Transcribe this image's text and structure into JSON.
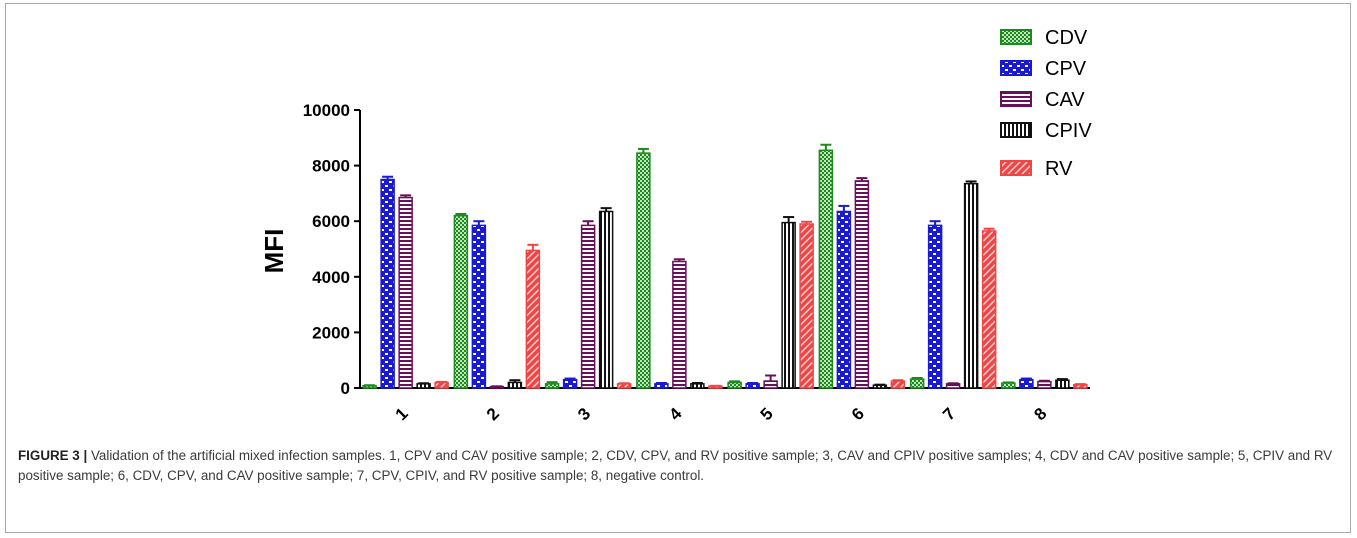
{
  "chart_data": {
    "type": "bar",
    "ylabel": "MFI",
    "xlabel": "",
    "ylim": [
      0,
      10000
    ],
    "yticks": [
      "0",
      "2000",
      "4000",
      "6000",
      "8000",
      "10000"
    ],
    "categories": [
      "1",
      "2",
      "3",
      "4",
      "5",
      "6",
      "7",
      "8"
    ],
    "legend_position": "top-right",
    "series": [
      {
        "name": "CDV",
        "color": "#1e8a1e",
        "pattern": "checker",
        "values": [
          80,
          6200,
          150,
          8450,
          200,
          8550,
          320,
          180
        ],
        "errors": [
          20,
          60,
          60,
          150,
          40,
          200,
          40,
          20
        ]
      },
      {
        "name": "CPV",
        "color": "#1a1ad0",
        "pattern": "blocks",
        "values": [
          7500,
          5850,
          300,
          150,
          150,
          6350,
          5850,
          300
        ],
        "errors": [
          100,
          150,
          40,
          30,
          30,
          200,
          150,
          40
        ]
      },
      {
        "name": "CAV",
        "color": "#6a0f5c",
        "pattern": "hstripes",
        "values": [
          6850,
          50,
          5850,
          4550,
          250,
          7450,
          150,
          230
        ],
        "errors": [
          80,
          10,
          150,
          80,
          200,
          100,
          20,
          30
        ]
      },
      {
        "name": "CPIV",
        "color": "#111111",
        "pattern": "vstripes",
        "values": [
          150,
          200,
          6350,
          150,
          5950,
          100,
          7350,
          280
        ],
        "errors": [
          20,
          80,
          120,
          30,
          200,
          20,
          80,
          40
        ]
      },
      {
        "name": "RV",
        "color": "#f04545",
        "pattern": "diagonal",
        "values": [
          200,
          4950,
          150,
          70,
          5900,
          250,
          5650,
          120
        ],
        "errors": [
          20,
          200,
          20,
          10,
          80,
          30,
          80,
          20
        ]
      }
    ]
  },
  "caption": {
    "label": "FIGURE 3 |",
    "text": "Validation of the artificial mixed infection samples. 1, CPV and CAV positive sample; 2, CDV, CPV, and RV positive sample; 3, CAV and CPIV positive samples; 4, CDV and CAV positive sample; 5, CPIV and RV positive sample; 6, CDV, CPV, and CAV positive sample; 7, CPV, CPIV, and RV positive sample; 8, negative control."
  }
}
